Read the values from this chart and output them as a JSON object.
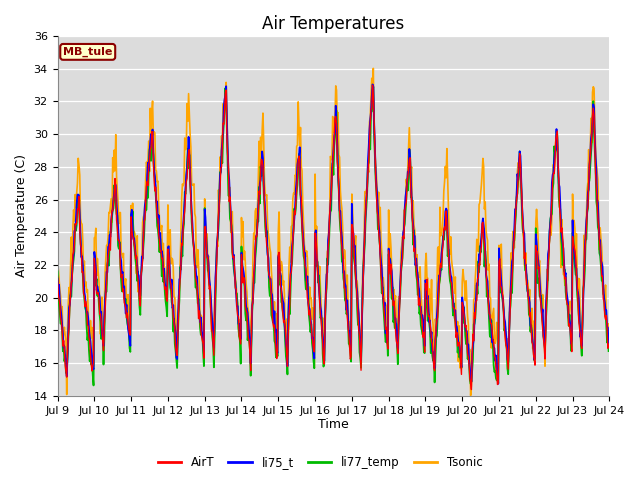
{
  "title": "Air Temperatures",
  "xlabel": "Time",
  "ylabel": "Air Temperature (C)",
  "ylim": [
    14,
    36
  ],
  "yticks": [
    14,
    16,
    18,
    20,
    22,
    24,
    26,
    28,
    30,
    32,
    34,
    36
  ],
  "x_tick_labels": [
    "Jul 9",
    "Jul 10",
    "Jul 11",
    "Jul 12",
    "Jul 13",
    "Jul 14",
    "Jul 15",
    "Jul 16",
    "Jul 17",
    "Jul 18",
    "Jul 19",
    "Jul 20",
    "Jul 21",
    "Jul 22",
    "Jul 23",
    "Jul 24"
  ],
  "site_label": "MB_tule",
  "legend_labels": [
    "AirT",
    "li75_t",
    "li77_temp",
    "Tsonic"
  ],
  "line_colors": [
    "#ff0000",
    "#0000ff",
    "#00bb00",
    "#ffa500"
  ],
  "background_color": "#dcdcdc",
  "title_fontsize": 12,
  "label_fontsize": 9,
  "tick_fontsize": 8,
  "day_maxs": [
    26.5,
    27.2,
    30.5,
    29.5,
    33.0,
    29.0,
    29.0,
    31.5,
    33.5,
    29.0,
    25.5,
    25.0,
    29.0,
    30.5,
    32.0
  ],
  "day_mins": [
    15.0,
    17.0,
    19.5,
    16.0,
    16.5,
    16.0,
    16.0,
    16.0,
    16.0,
    16.5,
    15.5,
    14.5,
    15.5,
    16.5,
    16.5
  ],
  "tsonic_extra": [
    3.0,
    2.0,
    1.5,
    3.5,
    0.5,
    2.5,
    2.5,
    2.0,
    0.5,
    1.5,
    3.0,
    3.5,
    1.0,
    0.5,
    1.5
  ]
}
